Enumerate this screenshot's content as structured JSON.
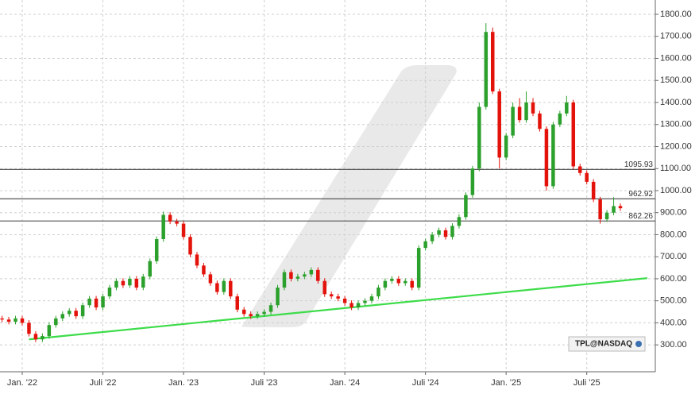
{
  "chart_data": {
    "type": "candlestick",
    "badge": "TPL@NASDAQ",
    "xlim": [
      -1.655,
      47.1
    ],
    "ylim": [
      178,
      1865
    ],
    "xticks": [
      {
        "value": 0,
        "label": "Jan. '22"
      },
      {
        "value": 6,
        "label": "Juli '22"
      },
      {
        "value": 12,
        "label": "Jan. '23"
      },
      {
        "value": 18,
        "label": "Juli '23"
      },
      {
        "value": 24,
        "label": "Jan. '24"
      },
      {
        "value": 30,
        "label": "Juli '24"
      },
      {
        "value": 36,
        "label": "Jan. '25"
      },
      {
        "value": 42,
        "label": "Juli '25"
      }
    ],
    "yticks": [
      {
        "value": 300,
        "label": "300.00"
      },
      {
        "value": 400,
        "label": "400.00"
      },
      {
        "value": 500,
        "label": "500.00"
      },
      {
        "value": 600,
        "label": "600.00"
      },
      {
        "value": 700,
        "label": "700.00"
      },
      {
        "value": 800,
        "label": "800.00"
      },
      {
        "value": 900,
        "label": "900.00"
      },
      {
        "value": 1000,
        "label": "1000.00"
      },
      {
        "value": 1100,
        "label": "1100.00"
      },
      {
        "value": 1200,
        "label": "1200.00"
      },
      {
        "value": 1300,
        "label": "1300.00"
      },
      {
        "value": 1400,
        "label": "1400.00"
      },
      {
        "value": 1500,
        "label": "1500.00"
      },
      {
        "value": 1600,
        "label": "1600.00"
      },
      {
        "value": 1700,
        "label": "1700.00"
      },
      {
        "value": 1800,
        "label": "1800.00"
      }
    ],
    "grid": true,
    "up_color": "#2ca02c",
    "down_color": "#e3120b",
    "levels": [
      1095.93,
      962.92,
      862.26
    ],
    "level_color": "#555555",
    "trendline": {
      "x": [
        0.5,
        46.5
      ],
      "values": [
        325,
        603
      ],
      "color": "#3ddc4a"
    },
    "x": [
      -1.5,
      -1,
      -0.5,
      0,
      0.5,
      1,
      1.5,
      2,
      2.5,
      3,
      3.5,
      4,
      4.5,
      5,
      5.5,
      6,
      6.5,
      7,
      7.5,
      8,
      8.5,
      9,
      9.5,
      10,
      10.5,
      11,
      11.5,
      12,
      12.5,
      13,
      13.5,
      14,
      14.5,
      15,
      15.5,
      16,
      16.5,
      17,
      17.5,
      18,
      18.5,
      19,
      19.5,
      20,
      20.5,
      21,
      21.5,
      22,
      22.5,
      23,
      23.5,
      24,
      24.5,
      25,
      25.5,
      26,
      26.5,
      27,
      27.5,
      28,
      28.5,
      29,
      29.5,
      30,
      30.5,
      31,
      31.5,
      32,
      32.5,
      33,
      33.5,
      34,
      34.5,
      35,
      35.5,
      36,
      36.5,
      37,
      37.5,
      38,
      38.5,
      39,
      39.5,
      40,
      40.5,
      41,
      41.5,
      42,
      42.5,
      43,
      43.5,
      44,
      44.5
    ],
    "open": [
      420,
      415,
      405,
      420,
      400,
      350,
      325,
      340,
      390,
      420,
      440,
      455,
      430,
      480,
      510,
      470,
      520,
      560,
      590,
      570,
      600,
      560,
      610,
      680,
      780,
      890,
      860,
      850,
      790,
      710,
      660,
      620,
      580,
      540,
      590,
      520,
      460,
      440,
      430,
      440,
      450,
      480,
      560,
      630,
      600,
      610,
      620,
      640,
      590,
      530,
      520,
      510,
      490,
      470,
      490,
      500,
      520,
      560,
      590,
      600,
      580,
      590,
      560,
      740,
      770,
      800,
      820,
      790,
      840,
      880,
      980,
      1100,
      1380,
      1720,
      1450,
      1150,
      1250,
      1380,
      1320,
      1400,
      1350,
      1280,
      1020,
      1300,
      1350,
      1400,
      1110,
      1080,
      1040,
      960,
      870,
      900,
      930
    ],
    "high": [
      432,
      427,
      432,
      432,
      412,
      362,
      352,
      402,
      432,
      452,
      467,
      467,
      492,
      522,
      522,
      532,
      572,
      602,
      602,
      612,
      612,
      622,
      692,
      792,
      905,
      902,
      872,
      862,
      802,
      722,
      672,
      632,
      592,
      602,
      602,
      532,
      472,
      452,
      452,
      462,
      492,
      572,
      642,
      642,
      622,
      632,
      652,
      652,
      602,
      542,
      532,
      522,
      502,
      502,
      512,
      532,
      572,
      602,
      612,
      612,
      602,
      602,
      752,
      782,
      812,
      832,
      832,
      852,
      892,
      992,
      1112,
      1400,
      1760,
      1740,
      1462,
      1262,
      1400,
      1420,
      1450,
      1420,
      1362,
      1292,
      1312,
      1362,
      1430,
      1412,
      1122,
      1092,
      1052,
      972,
      912,
      970,
      942
    ],
    "low": [
      403,
      393,
      393,
      388,
      338,
      313,
      313,
      328,
      378,
      408,
      428,
      418,
      418,
      468,
      458,
      458,
      508,
      548,
      558,
      558,
      548,
      548,
      598,
      668,
      768,
      848,
      838,
      778,
      698,
      648,
      608,
      568,
      528,
      528,
      508,
      448,
      428,
      418,
      418,
      428,
      438,
      468,
      548,
      588,
      588,
      598,
      608,
      578,
      518,
      508,
      498,
      478,
      458,
      458,
      478,
      488,
      508,
      548,
      578,
      568,
      568,
      548,
      548,
      728,
      758,
      788,
      778,
      778,
      828,
      868,
      968,
      1088,
      1368,
      1438,
      1100,
      1138,
      1238,
      1308,
      1308,
      1338,
      1268,
      1000,
      1008,
      1288,
      1338,
      1098,
      1068,
      1028,
      948,
      850,
      858,
      888,
      908
    ],
    "close": [
      415,
      405,
      420,
      400,
      350,
      325,
      340,
      390,
      420,
      440,
      455,
      430,
      480,
      510,
      470,
      520,
      560,
      590,
      570,
      600,
      560,
      610,
      680,
      780,
      890,
      860,
      850,
      790,
      710,
      660,
      620,
      580,
      540,
      590,
      520,
      460,
      440,
      430,
      440,
      450,
      480,
      560,
      630,
      600,
      610,
      620,
      640,
      590,
      530,
      520,
      510,
      490,
      470,
      490,
      500,
      520,
      560,
      590,
      600,
      580,
      590,
      560,
      740,
      770,
      800,
      820,
      790,
      840,
      880,
      980,
      1100,
      1380,
      1720,
      1450,
      1150,
      1250,
      1380,
      1320,
      1400,
      1350,
      1280,
      1020,
      1300,
      1350,
      1400,
      1110,
      1080,
      1040,
      960,
      870,
      900,
      930,
      920
    ]
  }
}
